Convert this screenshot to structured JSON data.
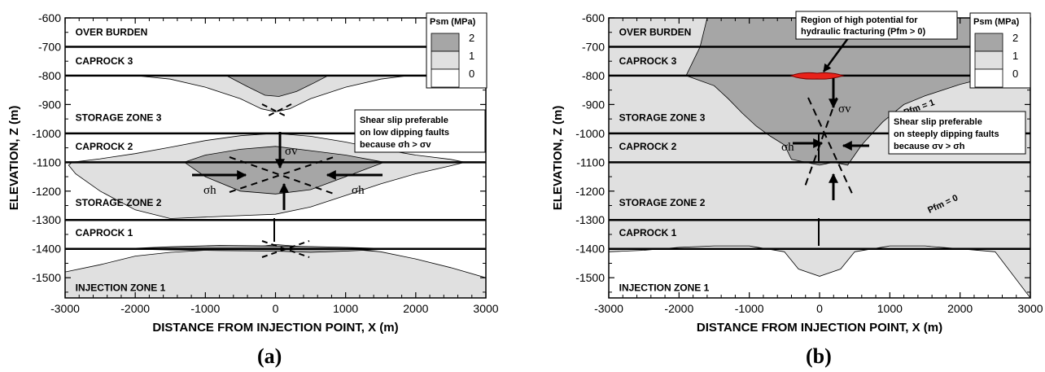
{
  "chart_data": [
    {
      "type": "contour",
      "panel": "(a)",
      "xlabel": "DISTANCE FROM INJECTION POINT, X  (m)",
      "ylabel": "ELEVATION, Z (m)",
      "xlim": [
        -3000,
        3000
      ],
      "ylim": [
        -1570,
        -600
      ],
      "xticks": [
        "-3000",
        "-2000",
        "-1000",
        "0",
        "1000",
        "2000",
        "3000"
      ],
      "yticks": [
        "-600",
        "-700",
        "-800",
        "-900",
        "-1000",
        "-1100",
        "-1200",
        "-1300",
        "-1400",
        "-1500"
      ],
      "legend": {
        "title": "Psm (MPa)",
        "levels": [
          "2",
          "1",
          "0"
        ],
        "colors": [
          "#a6a6a6",
          "#e0e0e0",
          "#ffffff"
        ],
        "placement": "top-right"
      },
      "layer_boundaries": [
        -700,
        -800,
        -1000,
        -1100,
        -1300,
        -1400
      ],
      "zones": [
        {
          "label": "OVER BURDEN",
          "x": -2900,
          "z": -650
        },
        {
          "label": "CAPROCK 3",
          "x": -2900,
          "z": -750
        },
        {
          "label": "STORAGE ZONE 3",
          "x": -2900,
          "z": -945
        },
        {
          "label": "CAPROCK 2",
          "x": -2900,
          "z": -1045
        },
        {
          "label": "STORAGE ZONE 2",
          "x": -2900,
          "z": -1240
        },
        {
          "label": "CAPROCK 1",
          "x": -2900,
          "z": -1345
        },
        {
          "label": "INJECTION ZONE 1",
          "x": -2900,
          "z": -1535
        }
      ],
      "annotation": {
        "lines": [
          "Shear slip preferable",
          "on low dipping faults",
          "because σh > σv"
        ]
      },
      "stress_labels": [
        "σv",
        "σh",
        "σh"
      ],
      "contours": [
        {
          "level": 1,
          "points": [
            [
              -2000,
              -800
            ],
            [
              -1500,
              -812
            ],
            [
              -1000,
              -840
            ],
            [
              -500,
              -880
            ],
            [
              -200,
              -915
            ],
            [
              0,
              -925
            ],
            [
              200,
              -915
            ],
            [
              500,
              -880
            ],
            [
              1000,
              -840
            ],
            [
              1500,
              -812
            ],
            [
              1900,
              -800
            ]
          ]
        },
        {
          "level": 2,
          "points": [
            [
              -700,
              -800
            ],
            [
              -400,
              -838
            ],
            [
              -150,
              -868
            ],
            [
              50,
              -872
            ],
            [
              300,
              -855
            ],
            [
              550,
              -825
            ],
            [
              750,
              -800
            ]
          ]
        },
        {
          "level": 1,
          "points": [
            [
              -2900,
              -1100
            ],
            [
              -2500,
              -1088
            ],
            [
              -2000,
              -1070
            ],
            [
              -1500,
              -1048
            ],
            [
              -1000,
              -1025
            ],
            [
              -500,
              -1008
            ],
            [
              0,
              -1000
            ],
            [
              500,
              -1010
            ],
            [
              1000,
              -1030
            ],
            [
              1500,
              -1055
            ],
            [
              2000,
              -1075
            ],
            [
              2500,
              -1090
            ],
            [
              2700,
              -1100
            ],
            [
              2500,
              -1112
            ],
            [
              2000,
              -1140
            ],
            [
              1500,
              -1175
            ],
            [
              1000,
              -1215
            ],
            [
              500,
              -1255
            ],
            [
              0,
              -1280
            ],
            [
              -500,
              -1285
            ],
            [
              -1000,
              -1290
            ],
            [
              -1500,
              -1295
            ],
            [
              -2000,
              -1265
            ],
            [
              -2500,
              -1200
            ],
            [
              -2850,
              -1140
            ],
            [
              -2950,
              -1110
            ]
          ]
        },
        {
          "level": 2,
          "points": [
            [
              -1300,
              -1100
            ],
            [
              -1000,
              -1075
            ],
            [
              -500,
              -1055
            ],
            [
              0,
              -1045
            ],
            [
              500,
              -1060
            ],
            [
              1000,
              -1075
            ],
            [
              1550,
              -1100
            ],
            [
              1000,
              -1150
            ],
            [
              500,
              -1195
            ],
            [
              0,
              -1210
            ],
            [
              -500,
              -1200
            ],
            [
              -1000,
              -1150
            ]
          ]
        },
        {
          "level": 1,
          "points": [
            [
              -3000,
              -1480
            ],
            [
              -2500,
              -1455
            ],
            [
              -2000,
              -1425
            ],
            [
              -1500,
              -1412
            ],
            [
              -1000,
              -1405
            ],
            [
              -500,
              -1400
            ],
            [
              0,
              -1385
            ],
            [
              500,
              -1395
            ],
            [
              1000,
              -1400
            ],
            [
              1500,
              -1410
            ],
            [
              2000,
              -1435
            ],
            [
              2500,
              -1465
            ],
            [
              3000,
              -1500
            ],
            [
              3000,
              -1570
            ],
            [
              -3000,
              -1570
            ]
          ]
        },
        {
          "level": 2,
          "points": [
            [
              -2200,
              -1400
            ],
            [
              -1500,
              -1393
            ],
            [
              -800,
              -1388
            ],
            [
              0,
              -1390
            ],
            [
              500,
              -1392
            ],
            [
              1000,
              -1395
            ],
            [
              1700,
              -1400
            ],
            [
              1000,
              -1408
            ],
            [
              500,
              -1412
            ],
            [
              0,
              -1408
            ],
            [
              -800,
              -1406
            ],
            [
              -1500,
              -1404
            ]
          ]
        }
      ]
    },
    {
      "type": "contour",
      "panel": "(b)",
      "xlabel": "DISTANCE FROM INJECTION POINT, X  (m)",
      "ylabel": "ELEVATION, Z (m)",
      "xlim": [
        -3000,
        3000
      ],
      "ylim": [
        -1570,
        -600
      ],
      "xticks": [
        "-3000",
        "-2000",
        "-1000",
        "0",
        "1000",
        "2000",
        "3000"
      ],
      "yticks": [
        "-600",
        "-700",
        "-800",
        "-900",
        "-1000",
        "-1100",
        "-1200",
        "-1300",
        "-1400",
        "-1500"
      ],
      "legend": {
        "title": "Psm (MPa)",
        "levels": [
          "2",
          "1",
          "0"
        ],
        "colors": [
          "#a6a6a6",
          "#e0e0e0",
          "#ffffff"
        ],
        "placement": "top-right"
      },
      "layer_boundaries": [
        -700,
        -800,
        -1000,
        -1100,
        -1300,
        -1400
      ],
      "zones": [
        {
          "label": "OVER BURDEN",
          "x": -2900,
          "z": -650
        },
        {
          "label": "CAPROCK 3",
          "x": -2900,
          "z": -750
        },
        {
          "label": "STORAGE ZONE 3",
          "x": -2900,
          "z": -945
        },
        {
          "label": "CAPROCK 2",
          "x": -2900,
          "z": -1045
        },
        {
          "label": "STORAGE ZONE 2",
          "x": -2900,
          "z": -1240
        },
        {
          "label": "CAPROCK 1",
          "x": -2900,
          "z": -1345
        },
        {
          "label": "INJECTION ZONE 1",
          "x": -2900,
          "z": -1535
        }
      ],
      "annotation": {
        "lines": [
          "Shear slip preferable",
          "on steeply dipping faults",
          "because σv > σh"
        ]
      },
      "fracture_annotation": {
        "lines": [
          "Region of high potential for",
          "hydraulic fracturing (Pfm > 0)"
        ]
      },
      "pfm_labels": [
        "Pfm = 1",
        "Pfm = 0"
      ],
      "stress_labels": [
        "σv",
        "σh"
      ],
      "contours": [
        {
          "level": 1,
          "points": [
            [
              -3000,
              -600
            ],
            [
              3000,
              -600
            ],
            [
              3000,
              -1570
            ],
            [
              2500,
              -1410
            ],
            [
              2000,
              -1400
            ],
            [
              1500,
              -1390
            ],
            [
              1000,
              -1390
            ],
            [
              500,
              -1410
            ],
            [
              300,
              -1470
            ],
            [
              0,
              -1495
            ],
            [
              -300,
              -1470
            ],
            [
              -500,
              -1410
            ],
            [
              -1000,
              -1390
            ],
            [
              -1500,
              -1390
            ],
            [
              -2000,
              -1395
            ],
            [
              -2500,
              -1405
            ],
            [
              -3000,
              -1410
            ]
          ]
        },
        {
          "level": 2,
          "points": [
            [
              -1600,
              -600
            ],
            [
              2400,
              -600
            ],
            [
              2800,
              -700
            ],
            [
              2800,
              -760
            ],
            [
              2500,
              -800
            ],
            [
              2000,
              -830
            ],
            [
              1500,
              -870
            ],
            [
              1200,
              -900
            ],
            [
              900,
              -960
            ],
            [
              600,
              -1040
            ],
            [
              400,
              -1110
            ],
            [
              200,
              -1100
            ],
            [
              0,
              -1110
            ],
            [
              -200,
              -1100
            ],
            [
              -400,
              -1090
            ],
            [
              -500,
              -1040
            ],
            [
              -700,
              -1010
            ],
            [
              -900,
              -975
            ],
            [
              -1100,
              -930
            ],
            [
              -1300,
              -880
            ],
            [
              -1500,
              -835
            ],
            [
              -1900,
              -800
            ],
            [
              -1700,
              -700
            ]
          ]
        }
      ]
    }
  ],
  "labels": {
    "panel_a": "(a)",
    "panel_b": "(b)"
  }
}
